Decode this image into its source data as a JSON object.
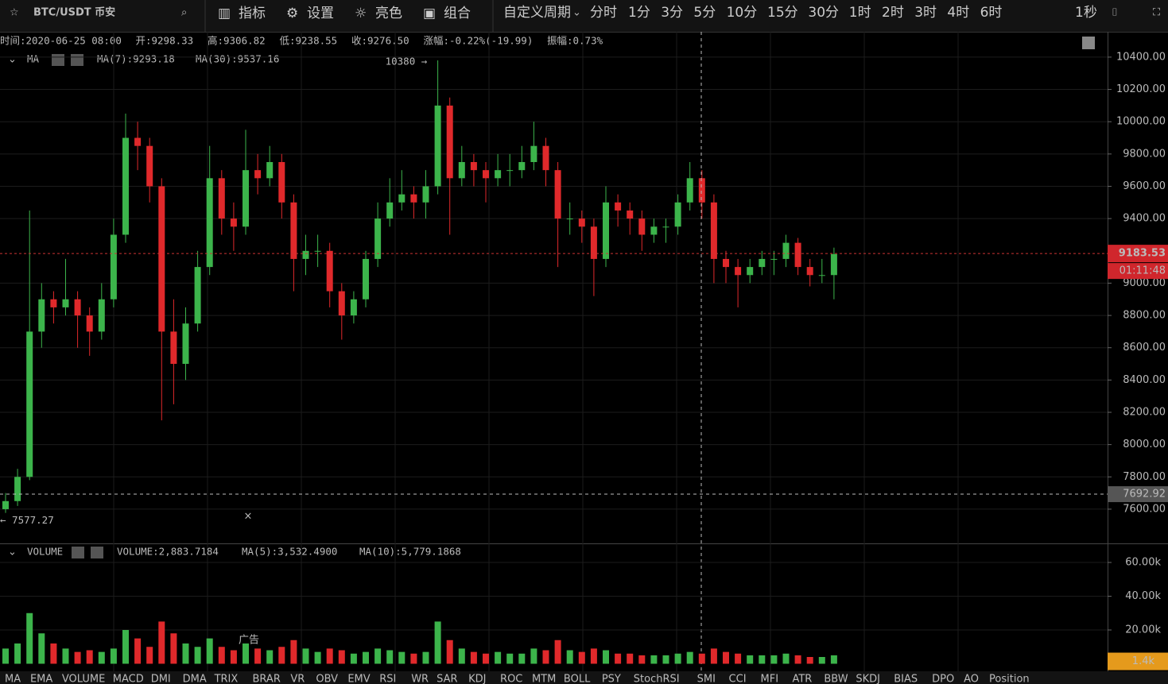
{
  "toolbar": {
    "symbol": "BTC/USDT 币安",
    "tools": [
      "指标",
      "设置",
      "亮色",
      "组合"
    ],
    "periods": [
      "自定义周期",
      "分时",
      "1分",
      "3分",
      "5分",
      "10分",
      "15分",
      "30分",
      "1时",
      "2时",
      "3时",
      "4时",
      "6时"
    ],
    "active_period": "2时",
    "refresh": "1秒"
  },
  "info": [
    {
      "label": "时间:",
      "value": "2020-06-25 08:00"
    },
    {
      "label": "开:",
      "value": "9298.33"
    },
    {
      "label": "高:",
      "value": "9306.82"
    },
    {
      "label": "低:",
      "value": "9238.55"
    },
    {
      "label": "收:",
      "value": "9276.50"
    },
    {
      "label": "涨幅:",
      "value": "-0.22%(-19.99)"
    },
    {
      "label": "振幅:",
      "value": "0.73%"
    }
  ],
  "price_panel": {
    "indicator": "MA",
    "ma_labels": [
      "MA(7):9293.18",
      "MA(30):9537.16"
    ],
    "high_note": "10380 →",
    "low_note": "← 7577.27",
    "ylim": [
      7393,
      10557
    ],
    "yticks": [
      {
        "value": 10400,
        "label": "10400.00"
      },
      {
        "value": 10200,
        "label": "10200.00"
      },
      {
        "value": 10000,
        "label": "10000.00"
      },
      {
        "value": 9800,
        "label": "9800.00"
      },
      {
        "value": 9600,
        "label": "9600.00"
      },
      {
        "value": 9400,
        "label": "9400.00"
      },
      {
        "value": 9000,
        "label": "9000.00"
      },
      {
        "value": 8800,
        "label": "8800.00"
      },
      {
        "value": 8600,
        "label": "8600.00"
      },
      {
        "value": 8400,
        "label": "8400.00"
      },
      {
        "value": 8200,
        "label": "8200.00"
      },
      {
        "value": 8000,
        "label": "8000.00"
      },
      {
        "value": 7800,
        "label": "7800.00"
      },
      {
        "value": 7600,
        "label": "7600.00"
      }
    ],
    "last_price": 9183.53,
    "countdown": "01:11:48",
    "crosshair_price": 7692.92,
    "candles": [
      [
        7600,
        7700,
        7577,
        7650
      ],
      [
        7650,
        7850,
        7620,
        7800
      ],
      [
        7800,
        9450,
        7780,
        8700
      ],
      [
        8700,
        9000,
        8600,
        8900
      ],
      [
        8900,
        8950,
        8750,
        8850
      ],
      [
        8850,
        9150,
        8800,
        8900
      ],
      [
        8900,
        8950,
        8600,
        8800
      ],
      [
        8800,
        8850,
        8550,
        8700
      ],
      [
        8700,
        9000,
        8650,
        8900
      ],
      [
        8900,
        9400,
        8850,
        9300
      ],
      [
        9300,
        10050,
        9250,
        9900
      ],
      [
        9900,
        10000,
        9700,
        9850
      ],
      [
        9850,
        9900,
        9500,
        9600
      ],
      [
        9600,
        9650,
        8150,
        8700
      ],
      [
        8700,
        8900,
        8250,
        8500
      ],
      [
        8500,
        8850,
        8400,
        8750
      ],
      [
        8750,
        9200,
        8700,
        9100
      ],
      [
        9100,
        9850,
        9050,
        9650
      ],
      [
        9650,
        9700,
        9300,
        9400
      ],
      [
        9400,
        9500,
        9200,
        9350
      ],
      [
        9350,
        9950,
        9300,
        9700
      ],
      [
        9700,
        9800,
        9550,
        9650
      ],
      [
        9650,
        9850,
        9600,
        9750
      ],
      [
        9750,
        9800,
        9400,
        9500
      ],
      [
        9500,
        9550,
        8950,
        9150
      ],
      [
        9150,
        9300,
        9050,
        9200
      ],
      [
        9200,
        9300,
        9100,
        9200
      ],
      [
        9200,
        9250,
        8850,
        8950
      ],
      [
        8950,
        9000,
        8650,
        8800
      ],
      [
        8800,
        8950,
        8750,
        8900
      ],
      [
        8900,
        9200,
        8850,
        9150
      ],
      [
        9150,
        9500,
        9100,
        9400
      ],
      [
        9400,
        9650,
        9350,
        9500
      ],
      [
        9500,
        9700,
        9450,
        9550
      ],
      [
        9550,
        9600,
        9400,
        9500
      ],
      [
        9500,
        9700,
        9400,
        9600
      ],
      [
        9600,
        10380,
        9550,
        10100
      ],
      [
        10100,
        10150,
        9300,
        9650
      ],
      [
        9650,
        9850,
        9600,
        9750
      ],
      [
        9750,
        9800,
        9600,
        9700
      ],
      [
        9700,
        9750,
        9500,
        9650
      ],
      [
        9650,
        9800,
        9600,
        9700
      ],
      [
        9700,
        9800,
        9600,
        9700
      ],
      [
        9700,
        9850,
        9650,
        9750
      ],
      [
        9750,
        10000,
        9700,
        9850
      ],
      [
        9850,
        9900,
        9600,
        9700
      ],
      [
        9700,
        9750,
        9100,
        9400
      ],
      [
        9400,
        9500,
        9300,
        9400
      ],
      [
        9400,
        9450,
        9250,
        9350
      ],
      [
        9350,
        9400,
        8920,
        9150
      ],
      [
        9150,
        9600,
        9100,
        9500
      ],
      [
        9500,
        9550,
        9350,
        9450
      ],
      [
        9450,
        9500,
        9300,
        9400
      ],
      [
        9400,
        9450,
        9200,
        9300
      ],
      [
        9300,
        9400,
        9250,
        9350
      ],
      [
        9350,
        9400,
        9250,
        9350
      ],
      [
        9350,
        9550,
        9300,
        9500
      ],
      [
        9500,
        9750,
        9450,
        9650
      ],
      [
        9650,
        9700,
        9400,
        9500
      ],
      [
        9500,
        9550,
        9000,
        9150
      ],
      [
        9150,
        9200,
        9000,
        9100
      ],
      [
        9100,
        9150,
        8850,
        9050
      ],
      [
        9050,
        9150,
        9000,
        9100
      ],
      [
        9100,
        9200,
        9050,
        9150
      ],
      [
        9150,
        9200,
        9050,
        9150
      ],
      [
        9150,
        9300,
        9100,
        9250
      ],
      [
        9250,
        9280,
        9050,
        9100
      ],
      [
        9100,
        9150,
        8980,
        9050
      ],
      [
        9050,
        9150,
        9000,
        9050
      ],
      [
        9050,
        9220,
        8900,
        9180
      ]
    ]
  },
  "volume_panel": {
    "indicator": "VOLUME",
    "labels": [
      "VOLUME:2,883.7184",
      "MA(5):3,532.4900",
      "MA(10):5,779.1868"
    ],
    "ad": "广告",
    "ylim": [
      0,
      70824
    ],
    "yticks": [
      {
        "value": 60000,
        "label": "60.00k"
      },
      {
        "value": 40000,
        "label": "40.00k"
      },
      {
        "value": 20000,
        "label": "20.00k"
      }
    ],
    "last_volume": {
      "value": 1400,
      "label": "1.4k"
    },
    "values": [
      9000,
      12000,
      30000,
      18000,
      12000,
      9000,
      7000,
      8000,
      7000,
      9000,
      20000,
      15000,
      10000,
      25000,
      18000,
      12000,
      10000,
      15000,
      10000,
      8000,
      12000,
      9000,
      8000,
      10000,
      14000,
      9000,
      7000,
      9000,
      8000,
      6000,
      7000,
      9000,
      8000,
      7000,
      6000,
      7000,
      25000,
      14000,
      9000,
      7000,
      6000,
      7000,
      6000,
      6000,
      9000,
      8000,
      14000,
      8000,
      7000,
      9000,
      8000,
      6000,
      6000,
      5000,
      5000,
      5000,
      6000,
      7000,
      6000,
      9000,
      7000,
      6000,
      5000,
      5000,
      5000,
      6000,
      5000,
      4000,
      4000,
      5000
    ]
  },
  "indicator_tabs": [
    "MA",
    "EMA",
    "VOLUME",
    "MACD",
    "DMI",
    "DMA",
    "TRIX",
    "BRAR",
    "VR",
    "OBV",
    "EMV",
    "RSI",
    "WR",
    "SAR",
    "KDJ",
    "ROC",
    "MTM",
    "BOLL",
    "PSY",
    "StochRSI",
    "SMI",
    "CCI",
    "MFI",
    "ATR",
    "BBW",
    "SKDJ",
    "BIAS",
    "DPO",
    "AO",
    "Position"
  ],
  "active_tab": "VOLUME"
}
